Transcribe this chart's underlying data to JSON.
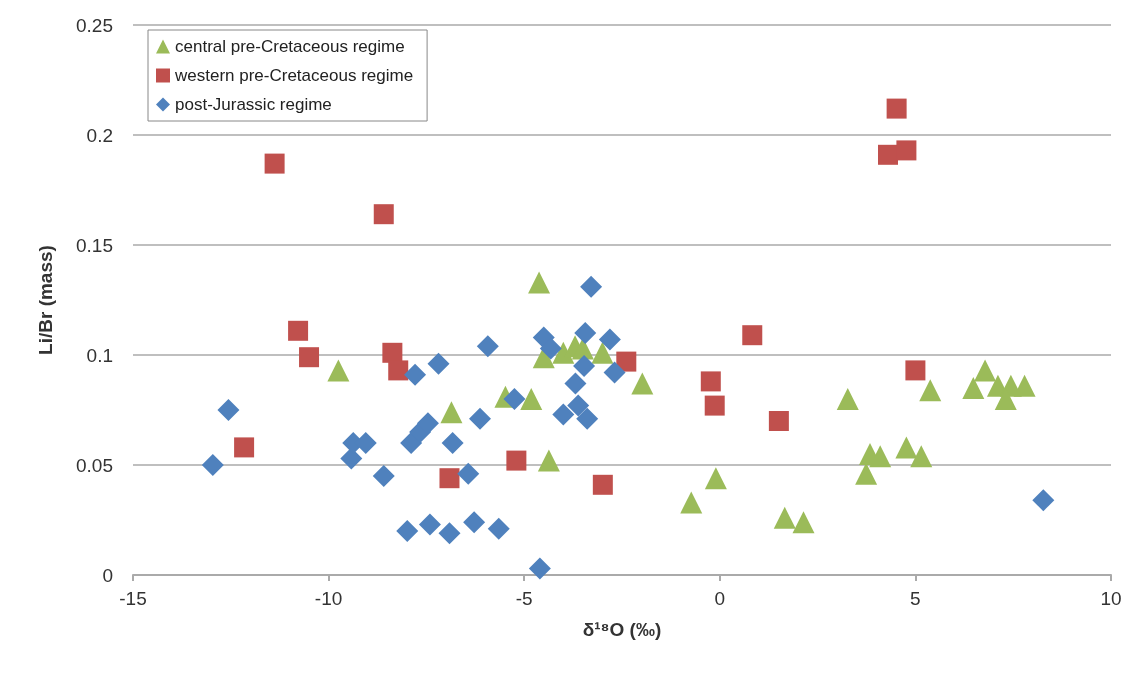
{
  "chart_data": {
    "type": "scatter",
    "xlabel": "δ¹⁸O (‰)",
    "ylabel": "Li/Br (mass)",
    "xlim": [
      -15,
      10
    ],
    "xticks": [
      -15,
      -10,
      -5,
      0,
      5,
      10
    ],
    "ylim": [
      0,
      0.25
    ],
    "yticks": [
      0,
      0.05,
      0.1,
      0.15,
      0.2,
      0.25
    ],
    "grid": "y",
    "legend": "top left",
    "series": [
      {
        "name": "central pre-Cretaceous regime",
        "color": "#9bbb59",
        "marker": "triangle",
        "x": [
          -4.62,
          -9.75,
          -6.86,
          -5.48,
          -4.82,
          -4.5,
          -4.0,
          -3.7,
          -3.5,
          -3.2,
          -3.0,
          -1.98,
          -4.37,
          -0.73,
          -0.1,
          1.66,
          2.14,
          3.27,
          3.84,
          4.1,
          3.74,
          4.77,
          5.15,
          5.38,
          6.48,
          6.78,
          7.11,
          7.29,
          7.44,
          7.31,
          7.79
        ],
        "values": [
          0.133,
          0.093,
          0.074,
          0.081,
          0.08,
          0.099,
          0.101,
          0.104,
          0.103,
          null,
          0.101,
          0.087,
          0.052,
          0.033,
          0.044,
          0.026,
          0.024,
          0.08,
          0.055,
          0.054,
          0.046,
          0.058,
          0.054,
          0.084,
          0.085,
          0.093,
          0.086,
          null,
          0.086,
          0.08,
          0.086
        ]
      },
      {
        "name": "western pre-Cretaceous regime",
        "color": "#c0504d",
        "marker": "square",
        "x": [
          -11.38,
          -8.59,
          -10.78,
          -10.5,
          -8.37,
          -8.22,
          -12.16,
          -6.91,
          -5.2,
          -2.99,
          -2.39,
          -0.23,
          -0.13,
          0.83,
          1.51,
          4.52,
          4.3,
          4.77,
          5.0
        ],
        "values": [
          0.187,
          0.164,
          0.111,
          0.099,
          0.101,
          0.093,
          0.058,
          0.044,
          0.052,
          0.041,
          0.097,
          0.088,
          0.077,
          0.109,
          0.07,
          0.212,
          0.191,
          0.193,
          0.093
        ]
      },
      {
        "name": "post-Jurassic regime",
        "color": "#4f81bd",
        "marker": "diamond",
        "x": [
          -12.96,
          -12.56,
          -9.42,
          -9.37,
          -9.05,
          -8.59,
          -7.79,
          -7.19,
          -5.93,
          -7.89,
          -7.66,
          -7.46,
          -6.83,
          -6.13,
          -6.43,
          -7.99,
          -7.41,
          -6.91,
          -6.28,
          -5.65,
          -3.29,
          -4.5,
          -4.32,
          -3.44,
          -2.81,
          -3.47,
          -2.69,
          -3.69,
          -5.25,
          -4.0,
          -3.62,
          -3.39,
          -4.6,
          8.27
        ],
        "values": [
          0.05,
          0.075,
          0.053,
          0.06,
          0.06,
          0.045,
          0.091,
          0.096,
          0.104,
          0.06,
          0.065,
          0.069,
          0.06,
          0.071,
          0.046,
          0.02,
          0.023,
          0.019,
          0.024,
          0.021,
          0.131,
          0.108,
          0.103,
          0.11,
          0.107,
          0.095,
          0.092,
          0.087,
          0.08,
          0.073,
          0.077,
          0.071,
          0.003,
          0.034
        ]
      }
    ]
  }
}
